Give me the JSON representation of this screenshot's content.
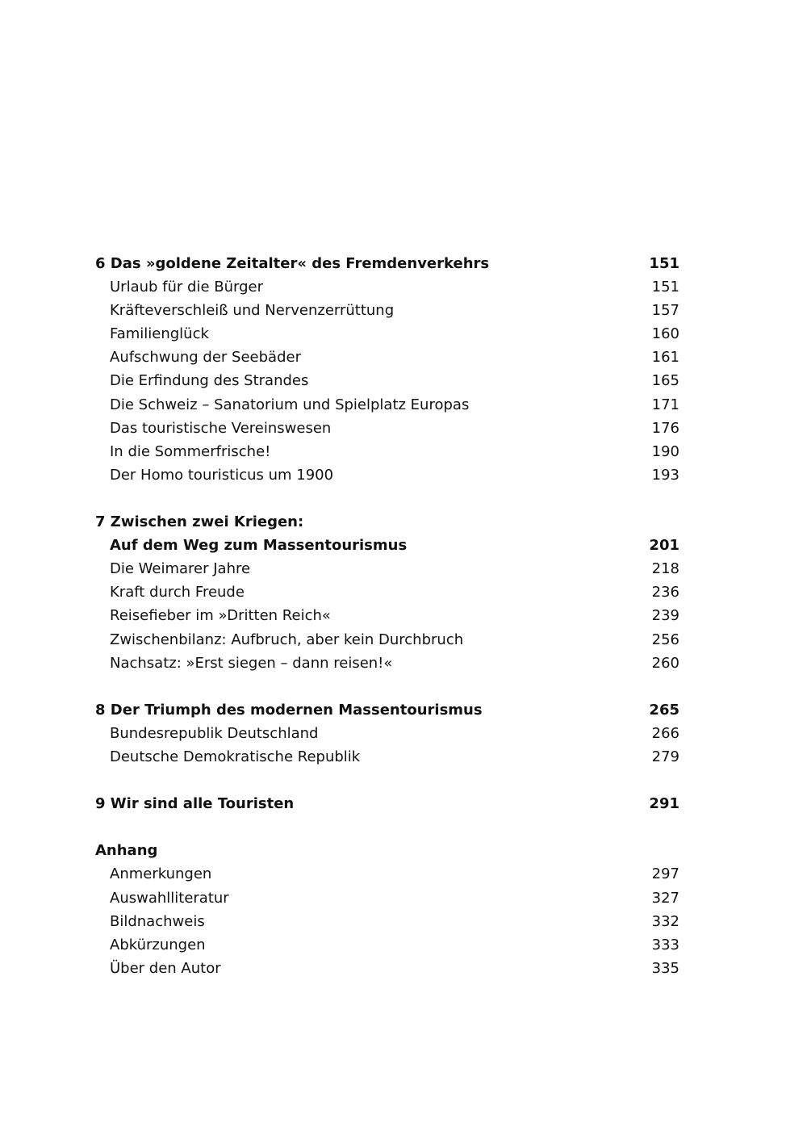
{
  "toc": [
    {
      "title": "6 Das »goldene Zeitalter« des Fremdenverkehrs",
      "page": "151",
      "bold": true,
      "indent": false
    },
    {
      "title": "Urlaub für die Bürger",
      "page": "151",
      "bold": false,
      "indent": true
    },
    {
      "title": "Kräfteverschleiß und Nervenzerrüttung",
      "page": "157",
      "bold": false,
      "indent": true
    },
    {
      "title": "Familienglück",
      "page": "160",
      "bold": false,
      "indent": true
    },
    {
      "title": "Aufschwung der Seebäder",
      "page": "161",
      "bold": false,
      "indent": true
    },
    {
      "title": "Die Erfindung des Strandes",
      "page": "165",
      "bold": false,
      "indent": true
    },
    {
      "title": "Die Schweiz – Sanatorium und Spielplatz Europas",
      "page": "171",
      "bold": false,
      "indent": true
    },
    {
      "title": "Das touristische Vereinswesen",
      "page": "176",
      "bold": false,
      "indent": true
    },
    {
      "title": "In die Sommerfrische!",
      "page": "190",
      "bold": false,
      "indent": true
    },
    {
      "title": "Der Homo touristicus um 1900",
      "page": "193",
      "bold": false,
      "indent": true
    },
    {
      "blank": true
    },
    {
      "title": "7 Zwischen zwei Kriegen:",
      "page": "",
      "bold": true,
      "indent": false
    },
    {
      "title": "Auf dem Weg zum Massentourismus",
      "page": "201",
      "bold": true,
      "indent": true
    },
    {
      "title": "Die Weimarer Jahre",
      "page": "218",
      "bold": false,
      "indent": true
    },
    {
      "title": "Kraft durch Freude",
      "page": "236",
      "bold": false,
      "indent": true
    },
    {
      "title": "Reisefieber im »Dritten Reich«",
      "page": "239",
      "bold": false,
      "indent": true
    },
    {
      "title": "Zwischenbilanz: Aufbruch, aber kein Durchbruch",
      "page": "256",
      "bold": false,
      "indent": true
    },
    {
      "title": "Nachsatz: »Erst siegen – dann reisen!«",
      "page": "260",
      "bold": false,
      "indent": true
    },
    {
      "blank": true
    },
    {
      "title": "8 Der Triumph des modernen Massentourismus",
      "page": "265",
      "bold": true,
      "indent": false
    },
    {
      "title": "Bundesrepublik Deutschland",
      "page": "266",
      "bold": false,
      "indent": true
    },
    {
      "title": "Deutsche Demokratische Republik",
      "page": "279",
      "bold": false,
      "indent": true
    },
    {
      "blank": true
    },
    {
      "title": "9 Wir sind alle Touristen",
      "page": "291",
      "bold": true,
      "indent": false
    },
    {
      "blank": true
    },
    {
      "title": "Anhang",
      "page": "",
      "bold": true,
      "indent": false
    },
    {
      "title": "Anmerkungen",
      "page": "297",
      "bold": false,
      "indent": true
    },
    {
      "title": "Auswahlliteratur",
      "page": "327",
      "bold": false,
      "indent": true
    },
    {
      "title": "Bildnachweis",
      "page": "332",
      "bold": false,
      "indent": true
    },
    {
      "title": "Abkürzungen",
      "page": "333",
      "bold": false,
      "indent": true
    },
    {
      "title": "Über den Autor",
      "page": "335",
      "bold": false,
      "indent": true
    }
  ]
}
